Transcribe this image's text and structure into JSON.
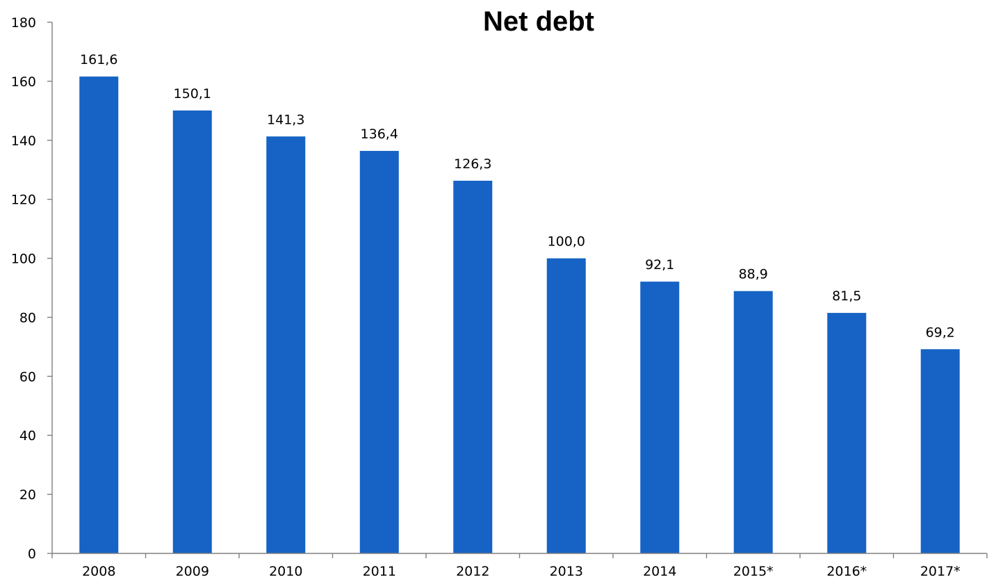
{
  "chart_data": {
    "type": "bar",
    "title": "Net debt",
    "xlabel": "",
    "ylabel": "",
    "categories": [
      "2008",
      "2009",
      "2010",
      "2011",
      "2012",
      "2013",
      "2014",
      "2015*",
      "2016*",
      "2017*"
    ],
    "values": [
      161.6,
      150.1,
      141.3,
      136.4,
      126.3,
      100.0,
      92.1,
      88.9,
      81.5,
      69.2
    ],
    "data_labels": [
      "161,6",
      "150,1",
      "141,3",
      "136,4",
      "126,3",
      "100,0",
      "92,1",
      "88,9",
      "81,5",
      "69,2"
    ],
    "ylim": [
      0,
      180
    ],
    "yticks": [
      "0",
      "20",
      "40",
      "60",
      "80",
      "100",
      "120",
      "140",
      "160",
      "180"
    ],
    "grid": false,
    "legend": "none",
    "colors": {
      "bar": "#1663C5",
      "axis": "#808080",
      "text": "#000000"
    }
  }
}
